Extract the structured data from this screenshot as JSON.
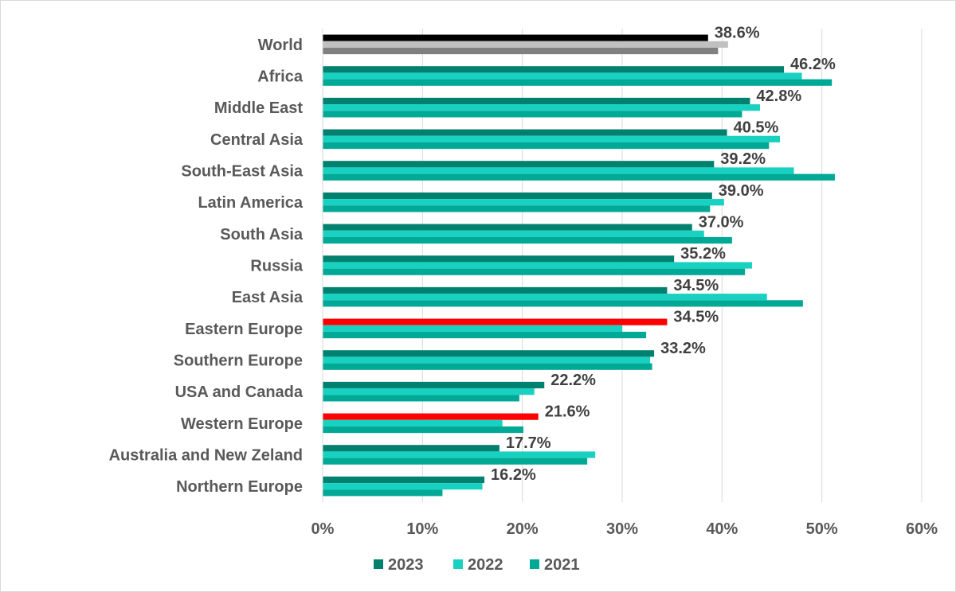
{
  "chart_data": {
    "type": "bar",
    "orientation": "horizontal",
    "categories": [
      "World",
      "Africa",
      "Middle East",
      "Central Asia",
      "South-East Asia",
      "Latin America",
      "South Asia",
      "Russia",
      "East Asia",
      "Eastern Europe",
      "Southern Europe",
      "USA and Canada",
      "Western Europe",
      "Australia and New Zeland",
      "Northern Europe"
    ],
    "series": [
      {
        "name": "2023",
        "color": "#00806e",
        "values": [
          38.6,
          46.2,
          42.8,
          40.5,
          39.2,
          39.0,
          37.0,
          35.2,
          34.5,
          34.5,
          33.2,
          22.2,
          21.6,
          17.7,
          16.2
        ]
      },
      {
        "name": "2022",
        "color": "#19d1c1",
        "values": [
          40.6,
          48.0,
          43.8,
          45.8,
          47.2,
          40.2,
          38.2,
          43.0,
          44.5,
          30.0,
          32.8,
          21.2,
          18.0,
          27.3,
          16.0
        ]
      },
      {
        "name": "2021",
        "color": "#00a896",
        "values": [
          39.6,
          51.0,
          42.0,
          44.7,
          51.3,
          38.8,
          41.0,
          42.3,
          48.1,
          32.4,
          33.0,
          19.7,
          20.1,
          26.5,
          12.0
        ]
      }
    ],
    "highlight_colors": {
      "World": {
        "2023": "#000000",
        "2022": "#c0c0c0",
        "2021": "#808080"
      },
      "Eastern Europe": {
        "2023": "#ff0000"
      },
      "Western Europe": {
        "2023": "#ff0000"
      }
    },
    "data_labels": [
      "38.6%",
      "46.2%",
      "42.8%",
      "40.5%",
      "39.2%",
      "39.0%",
      "37.0%",
      "35.2%",
      "34.5%",
      "34.5%",
      "33.2%",
      "22.2%",
      "21.6%",
      "17.7%",
      "16.2%"
    ],
    "xlim": [
      0,
      60
    ],
    "x_ticks": [
      "0%",
      "10%",
      "20%",
      "30%",
      "40%",
      "50%",
      "60%"
    ],
    "grid": "vertical",
    "legend_position": "bottom",
    "title": "",
    "xlabel": "",
    "ylabel": ""
  }
}
